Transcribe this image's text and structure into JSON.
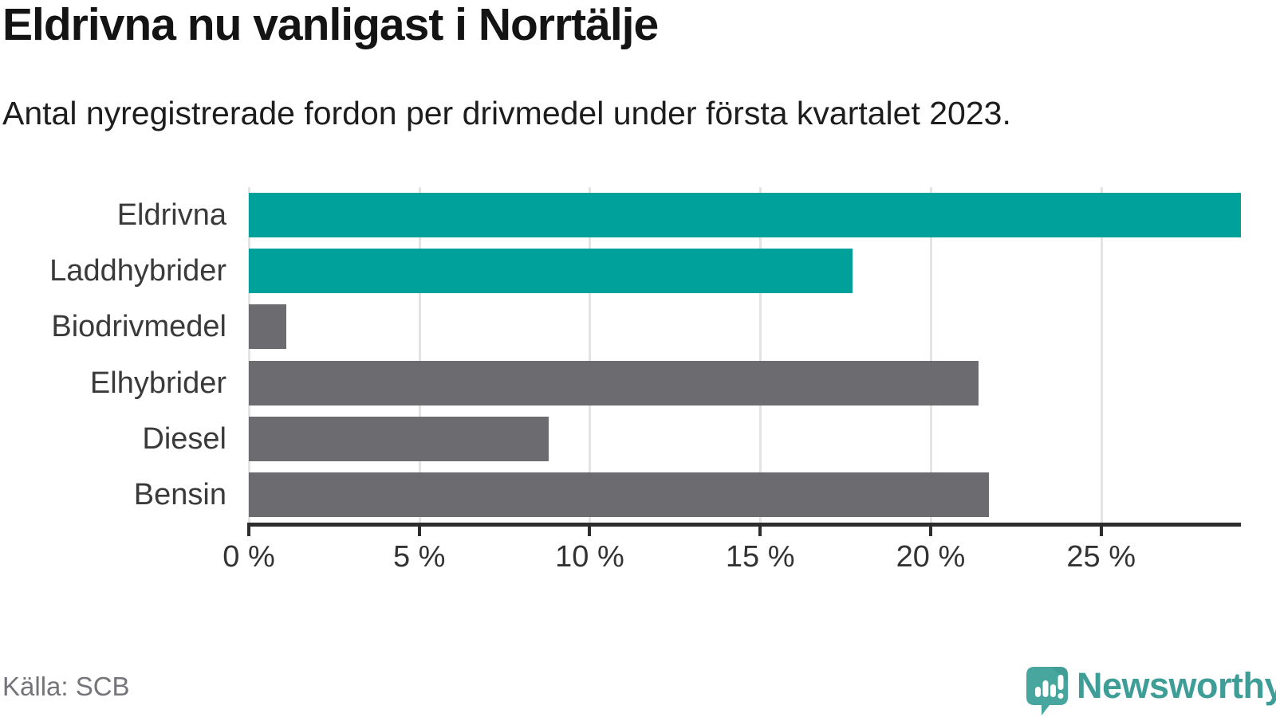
{
  "header": {
    "title": "Eldrivna nu vanligast i Norrtälje",
    "subtitle": "Antal nyregistrerade fordon per drivmedel under första kvartalet 2023."
  },
  "chart_data": {
    "type": "bar",
    "orientation": "horizontal",
    "title": "Eldrivna nu vanligast i Norrtälje",
    "subtitle": "Antal nyregistrerade fordon per drivmedel under första kvartalet 2023.",
    "categories": [
      "Eldrivna",
      "Laddhybrider",
      "Biodrivmedel",
      "Elhybrider",
      "Diesel",
      "Bensin"
    ],
    "values": [
      29.1,
      17.7,
      1.1,
      21.4,
      8.8,
      21.7
    ],
    "unit": "%",
    "bar_colors": [
      "#00a19a",
      "#00a19a",
      "#6b6b70",
      "#6b6b70",
      "#6b6b70",
      "#6b6b70"
    ],
    "xlim": [
      0,
      29.1
    ],
    "x_ticks": [
      0,
      5,
      10,
      15,
      20,
      25
    ],
    "x_tick_labels": [
      "0 %",
      "5 %",
      "10 %",
      "15 %",
      "20 %",
      "25 %"
    ],
    "xlabel": "",
    "ylabel": "",
    "grid": true,
    "legend": false
  },
  "colors": {
    "accent": "#00a19a",
    "neutral": "#6b6b70",
    "axis": "#2d2d2d",
    "gridline": "#e4e4e4",
    "logo_teal": "#47a69e"
  },
  "footer": {
    "source": "Källa: SCB",
    "brand": "Newsworthy"
  }
}
